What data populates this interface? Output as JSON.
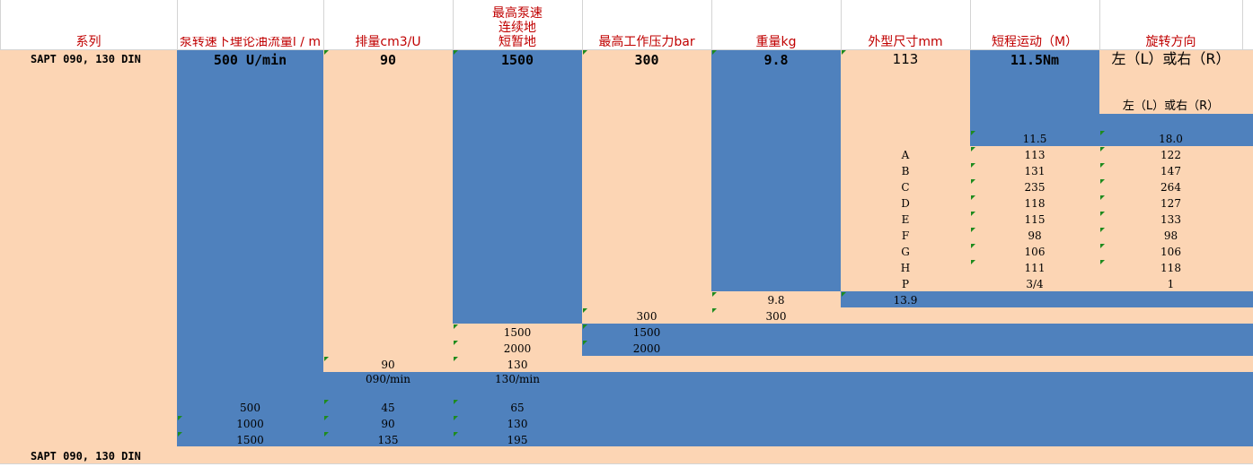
{
  "colors": {
    "orange": "#fcd5b4",
    "blue": "#4f81bd",
    "header_text": "#c00000",
    "grid": "#d4d4d4",
    "flag": "#1e8b1e"
  },
  "headers": {
    "series": "系列",
    "flow": "泵转速下理论油流量l / m",
    "displacement": "排量cm3/U",
    "max_speed": [
      "最高泵速",
      "连续地",
      "短暂地"
    ],
    "pressure": "最高工作压力bar",
    "weight": "重量kg",
    "dimensions": "外型尺寸mm",
    "torque": "短程运动（M）",
    "rotation": "旋转方向"
  },
  "row1": {
    "series": "SAPT 090, 130 DIN",
    "flow": "500 U/min",
    "displacement": "90",
    "speed": "1500",
    "pressure": "300",
    "weight": "9.8",
    "dimensions": "113",
    "torque": "11.5Nm",
    "rotation": "左（L）或右（R）"
  },
  "rotation_repeat": "左（L）或右（R）",
  "torque_row": [
    "11.5",
    "18.0"
  ],
  "dimension_rows": [
    {
      "letter": "A",
      "v090": "113",
      "v130": "122"
    },
    {
      "letter": "B",
      "v090": "131",
      "v130": "147"
    },
    {
      "letter": "C",
      "v090": "235",
      "v130": "264"
    },
    {
      "letter": "D",
      "v090": "118",
      "v130": "127"
    },
    {
      "letter": "E",
      "v090": "115",
      "v130": "133"
    },
    {
      "letter": "F",
      "v090": "98",
      "v130": "98"
    },
    {
      "letter": "G",
      "v090": "106",
      "v130": "106"
    },
    {
      "letter": "H",
      "v090": "111",
      "v130": "118"
    },
    {
      "letter": "P",
      "v090": "3/4",
      "v130": "1"
    }
  ],
  "weight_row": [
    "9.8",
    "13.9"
  ],
  "pressure_row": [
    "300",
    "300"
  ],
  "speed_rows": [
    [
      "1500",
      "1500"
    ],
    [
      "2000",
      "2000"
    ]
  ],
  "displacement_row": [
    "90",
    "130"
  ],
  "flow_header_row": [
    "090/min",
    "130/min"
  ],
  "flow_rows": [
    [
      "500",
      "45",
      "65"
    ],
    [
      "1000",
      "90",
      "130"
    ],
    [
      "1500",
      "135",
      "195"
    ]
  ],
  "footer_series": "SAPT 090, 130 DIN"
}
